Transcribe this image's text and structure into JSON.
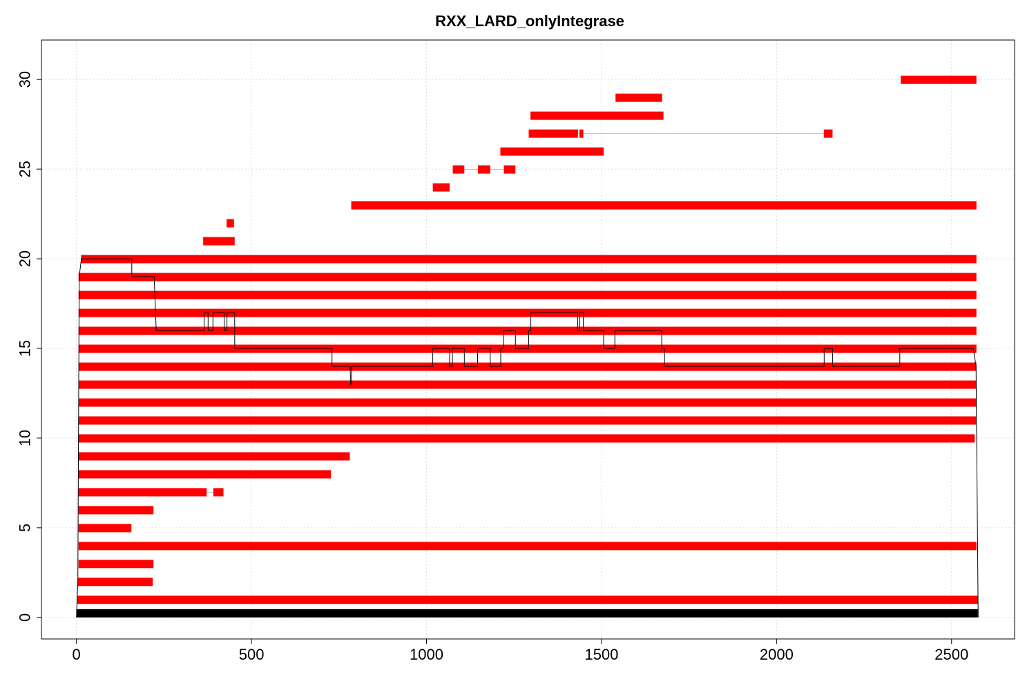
{
  "chart_data": {
    "type": "bar",
    "title": "RXX_LARD_onlyIntegrase",
    "xlabel": "",
    "ylabel": "",
    "xlim": [
      -100,
      2680
    ],
    "ylim": [
      -1.2,
      32.2
    ],
    "xticks": [
      0,
      500,
      1000,
      1500,
      2000,
      2500
    ],
    "yticks": [
      0,
      5,
      10,
      15,
      20,
      25,
      30
    ],
    "grid": true,
    "colors": {
      "segment": "#ff0000",
      "connector": "#bfbfbf",
      "coverage": "#000000",
      "reference": "#000000",
      "grid": "#dcdcdc"
    },
    "reference": {
      "row": 0,
      "start": 0,
      "end": 2575
    },
    "alignments": [
      {
        "row": 1,
        "segments": [
          [
            2,
            2575
          ]
        ]
      },
      {
        "row": 2,
        "segments": [
          [
            3,
            218
          ]
        ]
      },
      {
        "row": 3,
        "segments": [
          [
            6,
            220
          ]
        ]
      },
      {
        "row": 4,
        "segments": [
          [
            6,
            2571
          ]
        ]
      },
      {
        "row": 5,
        "segments": [
          [
            6,
            157
          ]
        ]
      },
      {
        "row": 6,
        "segments": [
          [
            6,
            220
          ]
        ]
      },
      {
        "row": 7,
        "segments": [
          [
            6,
            372
          ],
          [
            391,
            420
          ]
        ]
      },
      {
        "row": 8,
        "segments": [
          [
            6,
            727
          ]
        ]
      },
      {
        "row": 9,
        "segments": [
          [
            6,
            781
          ]
        ]
      },
      {
        "row": 10,
        "segments": [
          [
            6,
            2566
          ]
        ]
      },
      {
        "row": 11,
        "segments": [
          [
            6,
            2570
          ]
        ]
      },
      {
        "row": 12,
        "segments": [
          [
            6,
            2571
          ]
        ]
      },
      {
        "row": 13,
        "segments": [
          [
            6,
            2571
          ]
        ]
      },
      {
        "row": 14,
        "segments": [
          [
            6,
            2571
          ]
        ]
      },
      {
        "row": 15,
        "segments": [
          [
            6,
            2571
          ]
        ]
      },
      {
        "row": 16,
        "segments": [
          [
            6,
            2571
          ]
        ]
      },
      {
        "row": 17,
        "segments": [
          [
            6,
            2571
          ]
        ]
      },
      {
        "row": 18,
        "segments": [
          [
            6,
            2571
          ]
        ]
      },
      {
        "row": 19,
        "segments": [
          [
            6,
            2571
          ]
        ]
      },
      {
        "row": 20,
        "segments": [
          [
            13,
            2571
          ]
        ]
      },
      {
        "row": 21,
        "segments": [
          [
            362,
            452
          ]
        ]
      },
      {
        "row": 22,
        "segments": [
          [
            429,
            450
          ]
        ]
      },
      {
        "row": 23,
        "segments": [
          [
            785,
            2571
          ]
        ]
      },
      {
        "row": 24,
        "segments": [
          [
            1018,
            1066
          ]
        ]
      },
      {
        "row": 25,
        "segments": [
          [
            1075,
            1108
          ],
          [
            1147,
            1182
          ],
          [
            1221,
            1254
          ]
        ]
      },
      {
        "row": 26,
        "segments": [
          [
            1211,
            1506
          ]
        ]
      },
      {
        "row": 27,
        "segments": [
          [
            1292,
            1433
          ],
          [
            1437,
            1448
          ],
          [
            2135,
            2160
          ]
        ]
      },
      {
        "row": 28,
        "segments": [
          [
            1297,
            1677
          ]
        ]
      },
      {
        "row": 29,
        "segments": [
          [
            1540,
            1673
          ]
        ]
      },
      {
        "row": 30,
        "segments": [
          [
            2355,
            2571
          ]
        ]
      }
    ],
    "coverage": {
      "x": [
        0,
        4,
        8,
        14,
        158,
        158,
        222,
        228,
        365,
        365,
        376,
        376,
        390,
        390,
        422,
        422,
        430,
        430,
        452,
        452,
        730,
        730,
        782,
        783,
        786,
        786,
        1018,
        1018,
        1066,
        1066,
        1074,
        1074,
        1108,
        1108,
        1146,
        1146,
        1182,
        1182,
        1212,
        1212,
        1220,
        1220,
        1254,
        1254,
        1292,
        1292,
        1298,
        1298,
        1432,
        1432,
        1438,
        1438,
        1448,
        1448,
        1506,
        1506,
        1538,
        1538,
        1672,
        1672,
        1680,
        1680,
        2136,
        2136,
        2160,
        2160,
        2352,
        2352,
        2562,
        2570,
        2576
      ],
      "y": [
        0,
        2,
        19,
        20,
        20,
        19,
        19,
        16,
        16,
        17,
        17,
        16,
        16,
        17,
        17,
        16,
        16,
        17,
        17,
        15,
        15,
        14,
        14,
        13,
        13,
        14,
        14,
        15,
        15,
        14,
        14,
        15,
        15,
        14,
        14,
        15,
        15,
        14,
        14,
        15,
        15,
        16,
        16,
        15,
        15,
        16,
        16,
        17,
        17,
        16,
        16,
        17,
        17,
        16,
        16,
        15,
        15,
        16,
        16,
        15,
        15,
        14,
        14,
        15,
        15,
        14,
        14,
        15,
        15,
        14,
        0
      ]
    }
  }
}
